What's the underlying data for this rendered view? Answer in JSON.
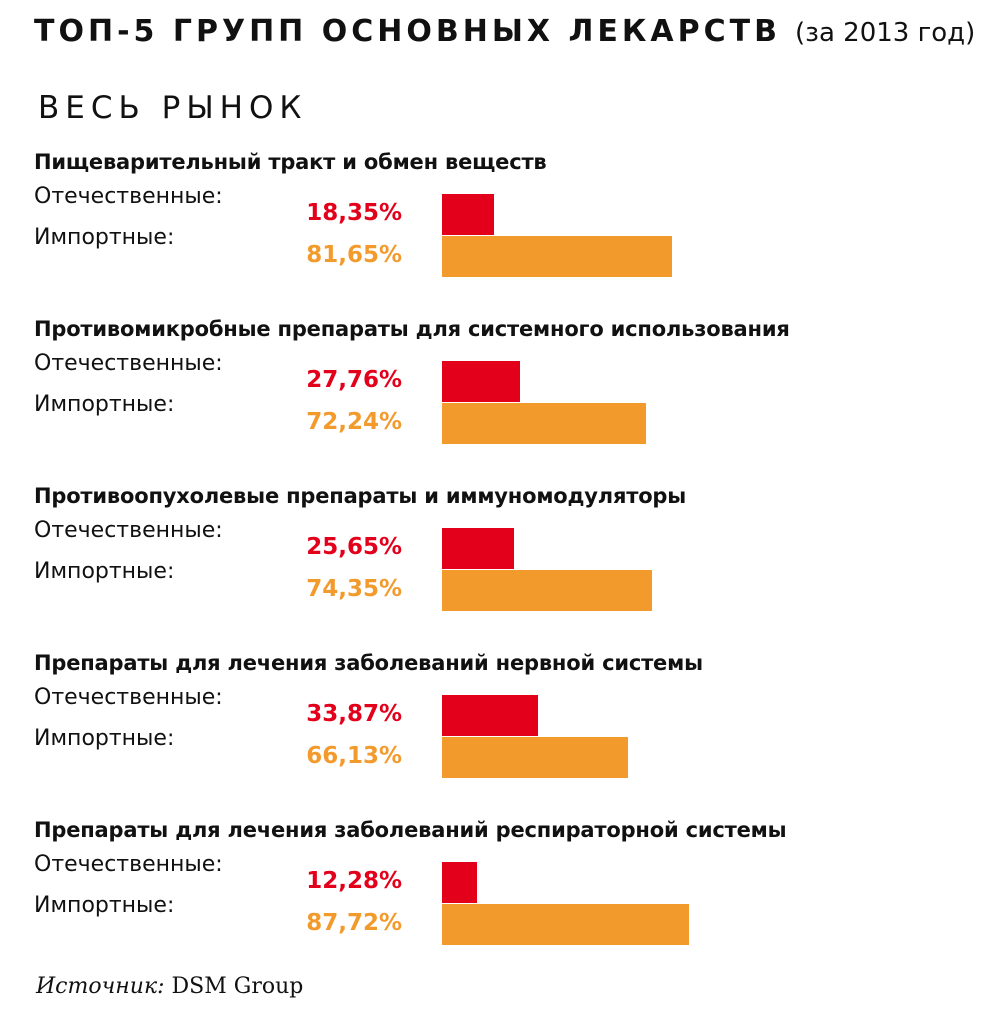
{
  "header": {
    "title": "ТОП-5 ГРУПП ОСНОВНЫХ ЛЕКАРСТВ",
    "title_suffix": "(за 2013 год)",
    "subtitle": "ВЕСЬ РЫНОК"
  },
  "labels": {
    "domestic": "Отечественные:",
    "imported": "Импортные:"
  },
  "colors": {
    "domestic": "#e3001b",
    "imported": "#f39a2d",
    "text": "#111111"
  },
  "chart_data": {
    "type": "bar",
    "orientation": "horizontal",
    "categories": [
      "Пищеварительный тракт и обмен веществ",
      "Противомикробные препараты для системного использования",
      "Противоопухолевые препараты и иммуномодуляторы",
      "Препараты для лечения заболеваний нервной системы",
      "Препараты для лечения заболеваний респираторной системы"
    ],
    "series": [
      {
        "name": "Отечественные:",
        "values": [
          18.35,
          27.76,
          25.65,
          33.87,
          12.28
        ],
        "labels": [
          "18,35%",
          "27,76%",
          "25,65%",
          "33,87%",
          "12,28%"
        ],
        "color": "#e3001b"
      },
      {
        "name": "Импортные:",
        "values": [
          81.65,
          72.24,
          74.35,
          66.13,
          87.72
        ],
        "labels": [
          "81,65%",
          "72,24%",
          "74,35%",
          "66,13%",
          "87,72%"
        ],
        "color": "#f39a2d"
      }
    ],
    "unit": "%",
    "xlim": [
      0,
      100
    ],
    "grid": false,
    "axes_visible": false
  },
  "source": {
    "label": "Источник:",
    "value": "DSM Group"
  }
}
